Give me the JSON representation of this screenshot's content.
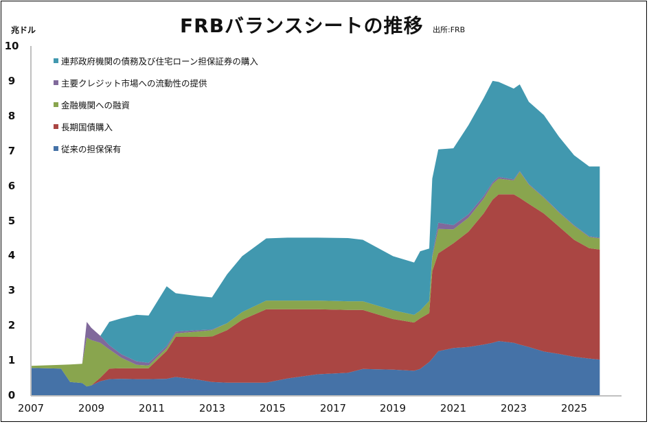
{
  "header": {
    "title": "FRBバランスシートの推移",
    "source": "出所:FRB",
    "unit": "兆ドル"
  },
  "chart_data": {
    "type": "area",
    "stacked": true,
    "title": "FRBバランスシートの推移",
    "subtitle": "出所:FRB",
    "ylabel": "兆ドル",
    "xlabel": "",
    "ylim": [
      0,
      10
    ],
    "xlim": [
      2007,
      2026
    ],
    "grid": false,
    "legend_position": "upper-left (inside)",
    "y_ticks": [
      "0",
      "1",
      "2",
      "3",
      "4",
      "5",
      "6",
      "7",
      "8",
      "9",
      "10"
    ],
    "x_ticks": [
      "2007",
      "2009",
      "2011",
      "2013",
      "2015",
      "2017",
      "2019",
      "2021",
      "2023",
      "2025"
    ],
    "x": [
      2007.0,
      2008.0,
      2008.3,
      2008.7,
      2008.85,
      2009.0,
      2009.3,
      2009.6,
      2010.0,
      2010.5,
      2010.9,
      2011.5,
      2011.8,
      2012.5,
      2013.0,
      2013.5,
      2014.0,
      2014.8,
      2015.5,
      2016.5,
      2017.5,
      2018.0,
      2019.0,
      2019.7,
      2019.9,
      2020.2,
      2020.3,
      2020.5,
      2021.0,
      2021.5,
      2022.0,
      2022.3,
      2022.5,
      2023.0,
      2023.2,
      2023.5,
      2024.0,
      2024.5,
      2025.0,
      2025.5,
      2025.85
    ],
    "series": [
      {
        "name": "従来の担保保有",
        "color": "#4572A7",
        "values": [
          0.78,
          0.76,
          0.38,
          0.35,
          0.25,
          0.28,
          0.4,
          0.46,
          0.47,
          0.46,
          0.46,
          0.47,
          0.52,
          0.45,
          0.38,
          0.36,
          0.36,
          0.36,
          0.48,
          0.6,
          0.64,
          0.75,
          0.73,
          0.7,
          0.75,
          0.95,
          1.05,
          1.26,
          1.35,
          1.38,
          1.45,
          1.5,
          1.55,
          1.5,
          1.45,
          1.38,
          1.25,
          1.18,
          1.1,
          1.05,
          1.02
        ]
      },
      {
        "name": "長期国債購入",
        "color": "#AA4643",
        "values": [
          0.0,
          0.0,
          0.0,
          0.0,
          0.0,
          0.0,
          0.1,
          0.3,
          0.3,
          0.31,
          0.31,
          0.8,
          1.15,
          1.22,
          1.3,
          1.5,
          1.8,
          2.1,
          1.98,
          1.86,
          1.8,
          1.69,
          1.45,
          1.38,
          1.45,
          1.4,
          2.5,
          2.8,
          3.0,
          3.3,
          3.75,
          4.1,
          4.2,
          4.25,
          4.2,
          4.1,
          3.95,
          3.65,
          3.35,
          3.16,
          3.15
        ]
      },
      {
        "name": "金融機関への融資",
        "color": "#89A54E",
        "values": [
          0.06,
          0.11,
          0.5,
          0.55,
          1.4,
          1.3,
          1.0,
          0.55,
          0.3,
          0.1,
          0.08,
          0.08,
          0.1,
          0.15,
          0.18,
          0.2,
          0.22,
          0.25,
          0.25,
          0.25,
          0.25,
          0.25,
          0.25,
          0.22,
          0.22,
          0.35,
          0.4,
          0.7,
          0.4,
          0.4,
          0.42,
          0.45,
          0.45,
          0.4,
          0.75,
          0.55,
          0.45,
          0.4,
          0.4,
          0.32,
          0.32
        ]
      },
      {
        "name": "主要クレジット市場への流動性の提供",
        "color": "#80699B",
        "values": [
          0.0,
          0.0,
          0.0,
          0.0,
          0.45,
          0.35,
          0.2,
          0.12,
          0.1,
          0.1,
          0.08,
          0.06,
          0.05,
          0.04,
          0.02,
          0.0,
          0.0,
          0.0,
          0.0,
          0.0,
          0.0,
          0.0,
          0.0,
          0.0,
          0.0,
          0.0,
          0.05,
          0.18,
          0.12,
          0.1,
          0.08,
          0.05,
          0.05,
          0.03,
          0.02,
          0.02,
          0.02,
          0.02,
          0.02,
          0.02,
          0.02
        ]
      },
      {
        "name": "連邦政府機関の債務及び住宅ローン担保証券の購入",
        "color": "#4198AF",
        "values": [
          0.0,
          0.0,
          0.0,
          0.0,
          0.0,
          0.0,
          0.0,
          0.67,
          1.03,
          1.33,
          1.35,
          1.71,
          1.1,
          0.98,
          0.92,
          1.4,
          1.6,
          1.78,
          1.8,
          1.8,
          1.81,
          1.76,
          1.55,
          1.5,
          1.7,
          1.5,
          2.2,
          2.1,
          2.2,
          2.55,
          2.8,
          2.9,
          2.72,
          2.6,
          2.48,
          2.35,
          2.35,
          2.15,
          2.0,
          2.0,
          2.04
        ]
      }
    ]
  },
  "legend": {
    "items": [
      {
        "label": "連邦政府機関の債務及び住宅ローン担保証券の購入",
        "color": "#4198AF"
      },
      {
        "label": "主要クレジット市場への流動性の提供",
        "color": "#80699B"
      },
      {
        "label": "金融機関への融資",
        "color": "#89A54E"
      },
      {
        "label": "長期国債購入",
        "color": "#AA4643"
      },
      {
        "label": "従来の担保保有",
        "color": "#4572A7"
      }
    ]
  },
  "axes": {
    "y_ticks": [
      "10",
      "9",
      "8",
      "7",
      "6",
      "5",
      "4",
      "3",
      "2",
      "1",
      "0"
    ],
    "x_ticks": [
      "2007",
      "2009",
      "2011",
      "2013",
      "2015",
      "2017",
      "2019",
      "2021",
      "2023",
      "2025"
    ]
  }
}
